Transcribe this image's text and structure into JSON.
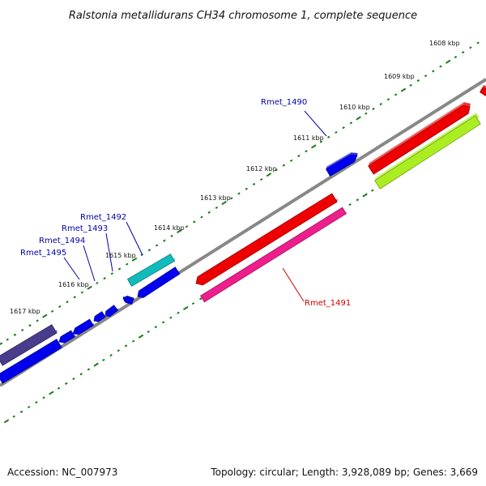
{
  "title": "Ralstonia metallidurans CH34 chromosome 1, complete sequence",
  "footer": {
    "accession": "Accession: NC_007973",
    "summary": "Topology: circular; Length: 3,928,089 bp; Genes: 3,669"
  },
  "ruler": {
    "ticks": [
      "1608 kbp",
      "1609 kbp",
      "1610 kbp",
      "1611 kbp",
      "1612 kbp",
      "1613 kbp",
      "1614 kbp",
      "1615 kbp",
      "1616 kbp",
      "1617 kbp"
    ]
  },
  "gene_labels": [
    {
      "name": "Rmet_1490",
      "color": "#0000aa"
    },
    {
      "name": "Rmet_1491",
      "color": "#cc0000"
    },
    {
      "name": "Rmet_1492",
      "color": "#0000aa"
    },
    {
      "name": "Rmet_1493",
      "color": "#0000aa"
    },
    {
      "name": "Rmet_1494",
      "color": "#0000aa"
    },
    {
      "name": "Rmet_1495",
      "color": "#0000aa"
    }
  ],
  "colors": {
    "backbone": "#888888",
    "ruler_ticks": "#1a7a1a",
    "gene_blue": "#0000ee",
    "gene_red": "#ee0000",
    "gene_magenta": "#ee1e8c",
    "gene_lime": "#aaee22",
    "gene_cyan": "#11bbbb",
    "gene_purple": "#4a3c8c"
  }
}
